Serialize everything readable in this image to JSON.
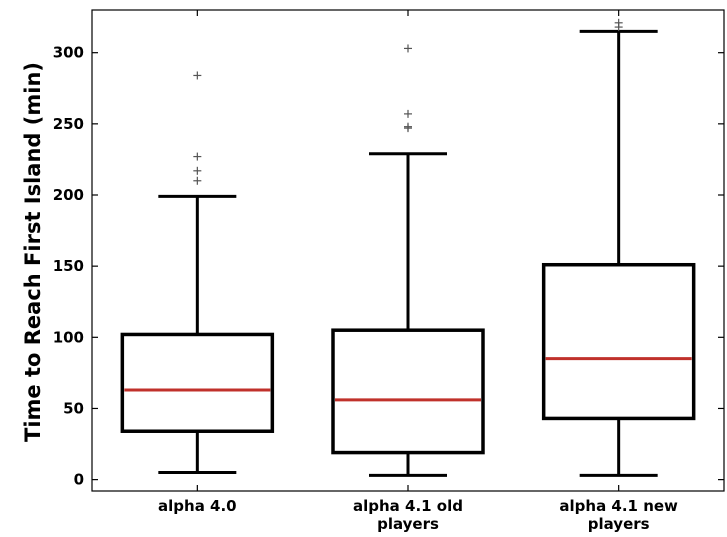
{
  "chart_data": {
    "type": "boxplot",
    "title": "",
    "xlabel": "",
    "ylabel": "Time to Reach First Island (min)",
    "ylim": [
      -8,
      330
    ],
    "yticks": [
      0,
      50,
      100,
      150,
      200,
      250,
      300
    ],
    "grid": false,
    "categories": [
      [
        "alpha 4.0"
      ],
      [
        "alpha 4.1 old",
        "players"
      ],
      [
        "alpha 4.1 new",
        "players"
      ]
    ],
    "boxes": [
      {
        "whisker_low": 5,
        "q1": 34,
        "median": 63,
        "q3": 102,
        "whisker_high": 199,
        "outliers": [
          210,
          217,
          227,
          284
        ]
      },
      {
        "whisker_low": 3,
        "q1": 19,
        "median": 56,
        "q3": 105,
        "whisker_high": 229,
        "outliers": [
          247,
          248,
          257,
          303
        ]
      },
      {
        "whisker_low": 3,
        "q1": 43,
        "median": 85,
        "q3": 151,
        "whisker_high": 315,
        "outliers": [
          318,
          321
        ]
      }
    ],
    "colors": {
      "box": "#000000",
      "median": "#c0312b",
      "outlier": "#555555"
    }
  }
}
